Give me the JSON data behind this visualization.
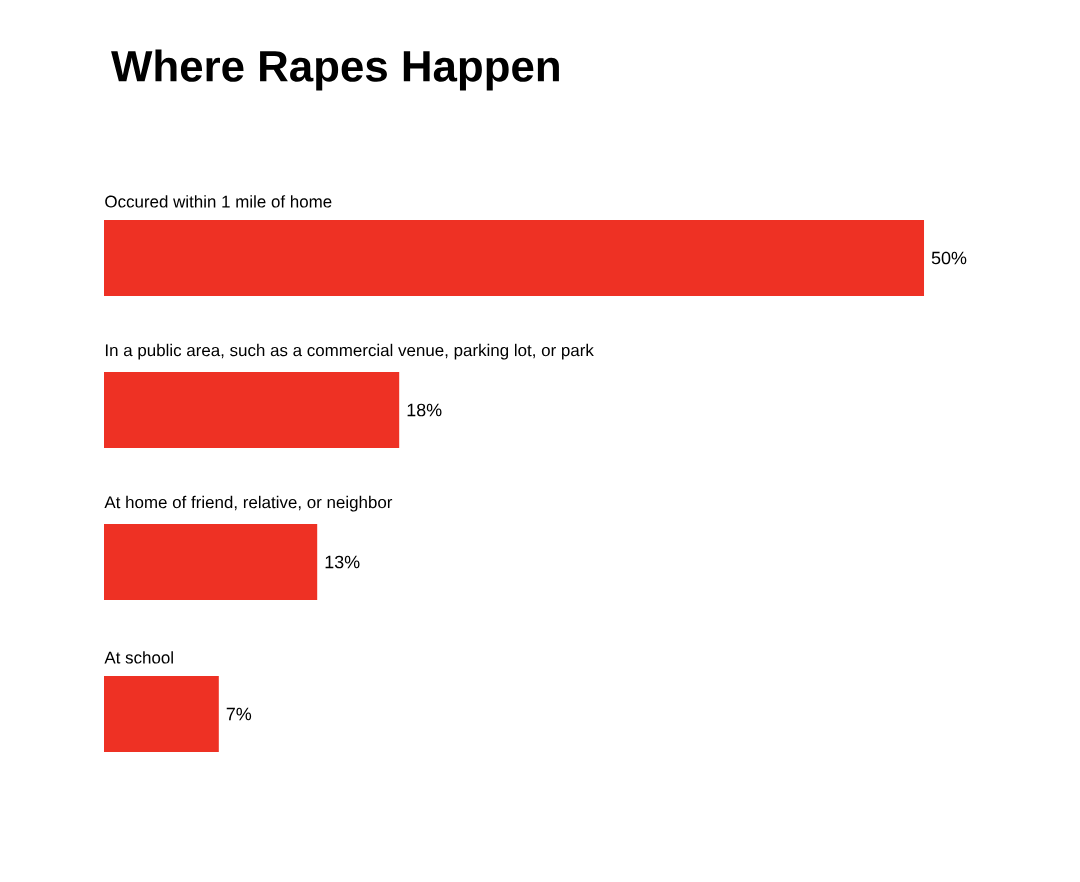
{
  "chart_data": {
    "type": "bar",
    "orientation": "horizontal",
    "title": "Where Rapes Happen",
    "categories": [
      "Occured within 1 mile of home",
      "In a public area, such as a commercial venue, parking lot, or park",
      "At home of friend, relative, or neighbor",
      "At school"
    ],
    "values": [
      50,
      18,
      13,
      7
    ],
    "value_labels": [
      "50%",
      "18%",
      "13%",
      "7%"
    ],
    "color": "#ee3124"
  }
}
